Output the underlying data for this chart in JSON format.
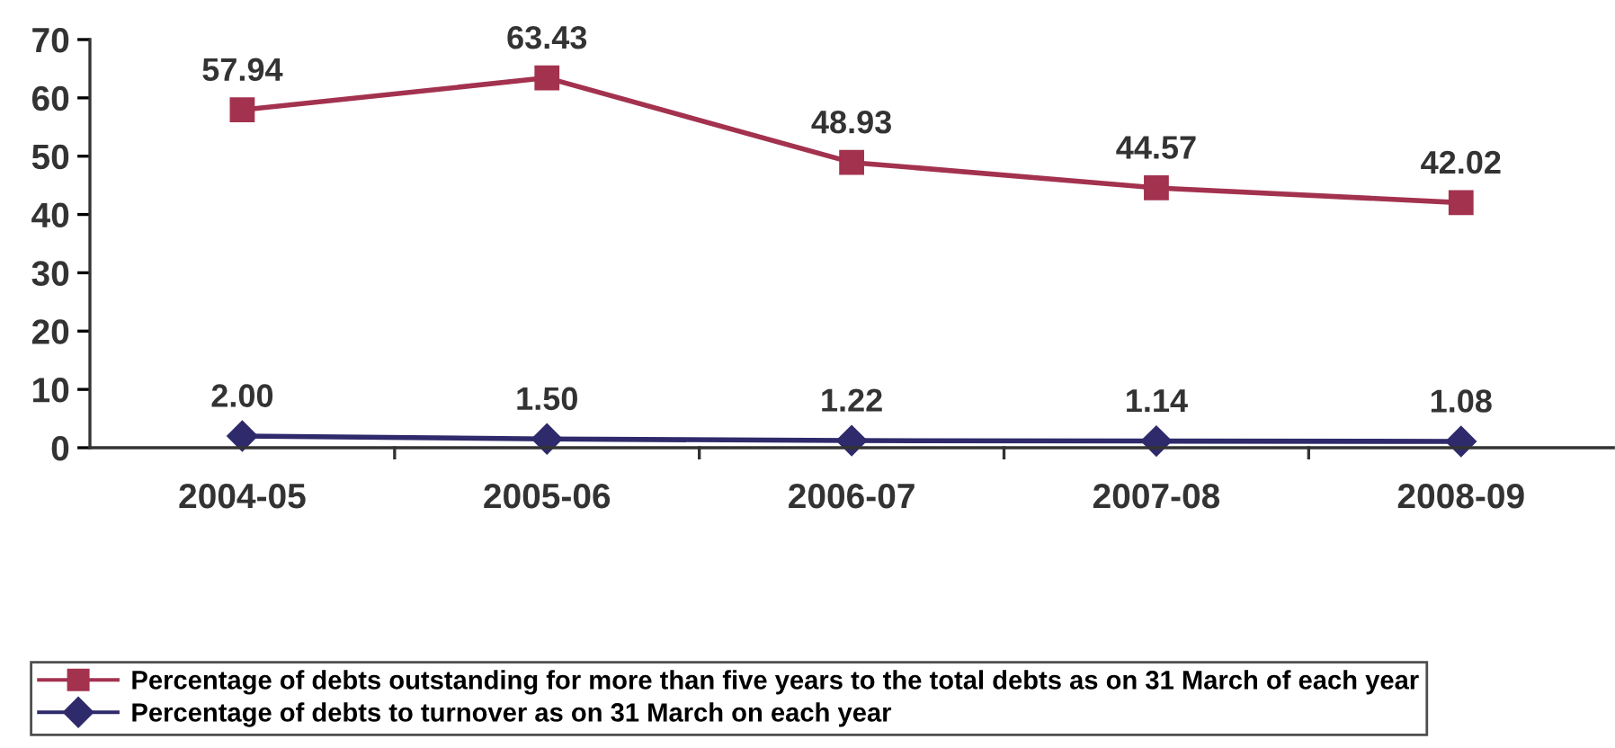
{
  "chart_data": {
    "type": "line",
    "categories": [
      "2004-05",
      "2005-06",
      "2006-07",
      "2007-08",
      "2008-09"
    ],
    "series": [
      {
        "name": "Percentage of debts outstanding for more than five years to the total debts as on 31 March of each year",
        "color": "#a3324f",
        "marker": "square",
        "values": [
          57.94,
          63.43,
          48.93,
          44.57,
          42.02
        ],
        "value_labels": [
          "57.94",
          "63.43",
          "48.93",
          "44.57",
          "42.02"
        ]
      },
      {
        "name": "Percentage of debts to turnover as on 31 March on each year",
        "color": "#2e2a6b",
        "marker": "diamond",
        "values": [
          2.0,
          1.5,
          1.22,
          1.14,
          1.08
        ],
        "value_labels": [
          "2.00",
          "1.50",
          "1.22",
          "1.14",
          "1.08"
        ]
      }
    ],
    "ylim": [
      0,
      70
    ],
    "yticks": [
      0,
      10,
      20,
      30,
      40,
      50,
      60,
      70
    ],
    "grid": false,
    "legend": "bottom",
    "line_style": "solid"
  }
}
